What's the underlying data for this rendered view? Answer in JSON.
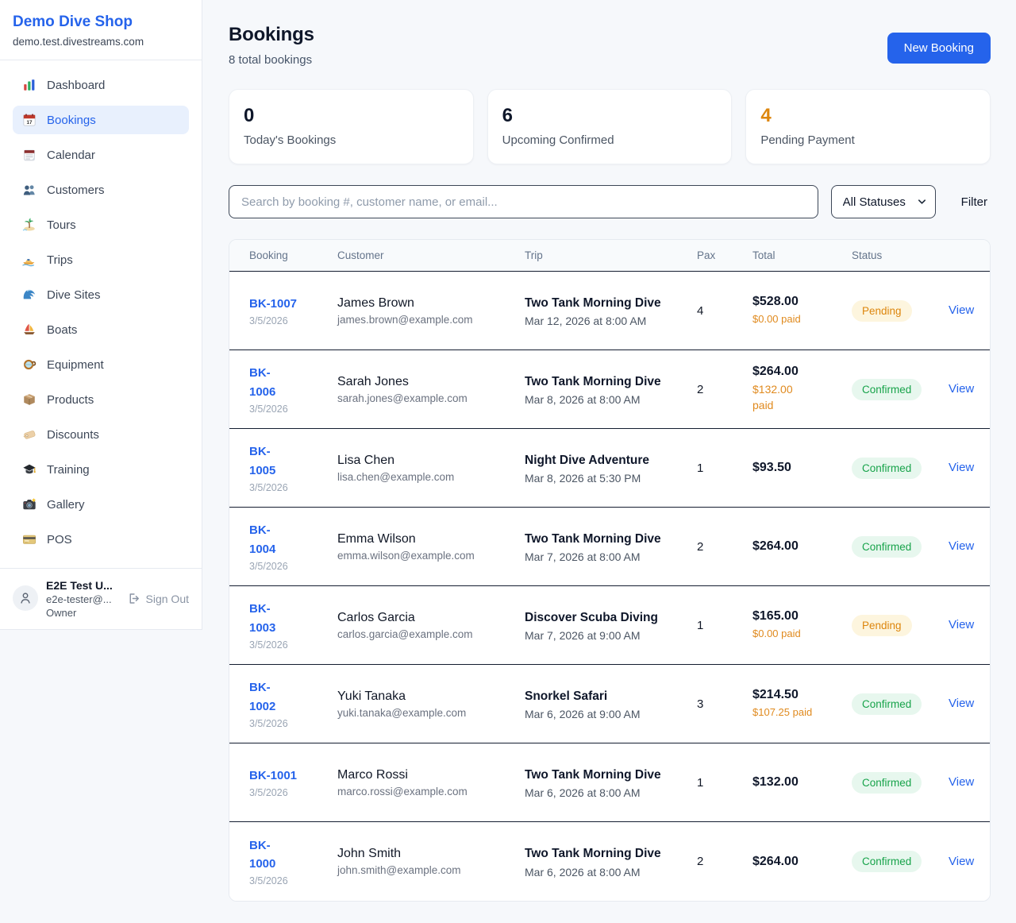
{
  "sidebar": {
    "brand": "Demo Dive Shop",
    "domain": "demo.test.divestreams.com",
    "items": [
      {
        "label": "Dashboard",
        "icon": "bar-chart-icon",
        "active": false
      },
      {
        "label": "Bookings",
        "icon": "bookings-calendar-icon",
        "active": true
      },
      {
        "label": "Calendar",
        "icon": "notepad-calendar-icon",
        "active": false
      },
      {
        "label": "Customers",
        "icon": "people-icon",
        "active": false
      },
      {
        "label": "Tours",
        "icon": "island-icon",
        "active": false
      },
      {
        "label": "Trips",
        "icon": "speedboat-icon",
        "active": false
      },
      {
        "label": "Dive Sites",
        "icon": "wave-icon",
        "active": false
      },
      {
        "label": "Boats",
        "icon": "sailboat-icon",
        "active": false
      },
      {
        "label": "Equipment",
        "icon": "dive-mask-icon",
        "active": false
      },
      {
        "label": "Products",
        "icon": "package-icon",
        "active": false
      },
      {
        "label": "Discounts",
        "icon": "tag-icon",
        "active": false
      },
      {
        "label": "Training",
        "icon": "graduation-cap-icon",
        "active": false
      },
      {
        "label": "Gallery",
        "icon": "camera-icon",
        "active": false
      },
      {
        "label": "POS",
        "icon": "credit-card-icon",
        "active": false
      }
    ],
    "user": {
      "name": "E2E Test U...",
      "email": "e2e-tester@...",
      "role": "Owner",
      "sign_out_label": "Sign Out"
    }
  },
  "header": {
    "title": "Bookings",
    "subtitle": "8 total bookings",
    "new_booking_label": "New Booking"
  },
  "stats": [
    {
      "value": "0",
      "label": "Today's Bookings",
      "value_color": "#0f172a"
    },
    {
      "value": "6",
      "label": "Upcoming Confirmed",
      "value_color": "#0f172a"
    },
    {
      "value": "4",
      "label": "Pending Payment",
      "value_color": "#dd860d"
    }
  ],
  "filters": {
    "search_placeholder": "Search by booking #, customer name, or email...",
    "status_selected": "All Statuses",
    "filter_label": "Filter"
  },
  "table": {
    "columns": [
      "Booking",
      "Customer",
      "Trip",
      "Pax",
      "Total",
      "Status"
    ],
    "view_label": "View",
    "rows": [
      {
        "id": "BK-1007",
        "id_wrap": false,
        "date": "3/5/2026",
        "customer": "James Brown",
        "email": "james.brown@example.com",
        "trip": "Two Tank Morning Dive",
        "trip_datetime": "Mar 12, 2026 at 8:00 AM",
        "pax": "4",
        "total": "$528.00",
        "paid": "$0.00 paid",
        "paid_wrap": false,
        "status": "Pending"
      },
      {
        "id": "BK-1006",
        "id_wrap": true,
        "date": "3/5/2026",
        "customer": "Sarah Jones",
        "email": "sarah.jones@example.com",
        "trip": "Two Tank Morning Dive",
        "trip_datetime": "Mar 8, 2026 at 8:00 AM",
        "pax": "2",
        "total": "$264.00",
        "paid": "$132.00 paid",
        "paid_wrap": true,
        "status": "Confirmed"
      },
      {
        "id": "BK-1005",
        "id_wrap": true,
        "date": "3/5/2026",
        "customer": "Lisa Chen",
        "email": "lisa.chen@example.com",
        "trip": "Night Dive Adventure",
        "trip_datetime": "Mar 8, 2026 at 5:30 PM",
        "pax": "1",
        "total": "$93.50",
        "paid": null,
        "paid_wrap": false,
        "status": "Confirmed"
      },
      {
        "id": "BK-1004",
        "id_wrap": true,
        "date": "3/5/2026",
        "customer": "Emma Wilson",
        "email": "emma.wilson@example.com",
        "trip": "Two Tank Morning Dive",
        "trip_datetime": "Mar 7, 2026 at 8:00 AM",
        "pax": "2",
        "total": "$264.00",
        "paid": null,
        "paid_wrap": false,
        "status": "Confirmed"
      },
      {
        "id": "BK-1003",
        "id_wrap": true,
        "date": "3/5/2026",
        "customer": "Carlos Garcia",
        "email": "carlos.garcia@example.com",
        "trip": "Discover Scuba Diving",
        "trip_datetime": "Mar 7, 2026 at 9:00 AM",
        "pax": "1",
        "total": "$165.00",
        "paid": "$0.00 paid",
        "paid_wrap": false,
        "status": "Pending"
      },
      {
        "id": "BK-1002",
        "id_wrap": true,
        "date": "3/5/2026",
        "customer": "Yuki Tanaka",
        "email": "yuki.tanaka@example.com",
        "trip": "Snorkel Safari",
        "trip_datetime": "Mar 6, 2026 at 9:00 AM",
        "pax": "3",
        "total": "$214.50",
        "paid": "$107.25 paid",
        "paid_wrap": false,
        "status": "Confirmed"
      },
      {
        "id": "BK-1001",
        "id_wrap": false,
        "date": "3/5/2026",
        "customer": "Marco Rossi",
        "email": "marco.rossi@example.com",
        "trip": "Two Tank Morning Dive",
        "trip_datetime": "Mar 6, 2026 at 8:00 AM",
        "pax": "1",
        "total": "$132.00",
        "paid": null,
        "paid_wrap": false,
        "status": "Confirmed"
      },
      {
        "id": "BK-1000",
        "id_wrap": true,
        "date": "3/5/2026",
        "customer": "John Smith",
        "email": "john.smith@example.com",
        "trip": "Two Tank Morning Dive",
        "trip_datetime": "Mar 6, 2026 at 8:00 AM",
        "pax": "2",
        "total": "$264.00",
        "paid": null,
        "paid_wrap": false,
        "status": "Confirmed"
      }
    ]
  },
  "colors": {
    "accent_blue": "#2563eb",
    "pending_text": "#dd860d",
    "pending_bg": "#fdf5de",
    "confirmed_text": "#17a34a",
    "confirmed_bg": "#e7f7ee",
    "paid_orange": "#e08a1e",
    "row_divider": "#141d30"
  }
}
